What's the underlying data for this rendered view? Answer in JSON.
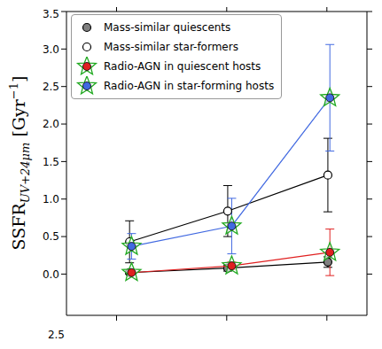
{
  "chart_data": {
    "type": "scatter",
    "y_label": {
      "text": "SSFR",
      "subscript": "UV+24μm",
      "unit": " [Gyr",
      "superscript": "−1",
      "close": "]"
    },
    "annotation": "2.5",
    "xlim": [
      0,
      3
    ],
    "xticks": [
      0.5,
      1.6,
      2.6
    ],
    "ylim": [
      -0.55,
      3.5
    ],
    "yticks": [
      {
        "value": 0,
        "label": "0.0"
      },
      {
        "value": 0.5,
        "label": "0.5"
      },
      {
        "value": 1,
        "label": "1.0"
      },
      {
        "value": 1.5,
        "label": "1.5"
      },
      {
        "value": 2,
        "label": "2.0"
      },
      {
        "value": 2.5,
        "label": "2.5"
      },
      {
        "value": 3,
        "label": "3.0"
      },
      {
        "value": 3.5,
        "label": "3.5"
      }
    ],
    "tick_labels": "y",
    "legend": "upper left",
    "series": [
      {
        "name": "Mass-similar quiescents",
        "color": "#000000",
        "marker": "filled_circle",
        "x": [
          0.63,
          1.61,
          2.61
        ],
        "values": [
          0.02,
          0.08,
          0.16
        ],
        "errors": [
          0.02,
          0.04,
          0.07
        ]
      },
      {
        "name": "Mass-similar star-formers",
        "color": "#000000",
        "marker": "open_circle",
        "x": [
          0.63,
          1.61,
          2.61
        ],
        "values": [
          0.43,
          0.84,
          1.32
        ],
        "errors": [
          0.28,
          0.34,
          0.49
        ]
      },
      {
        "name": "Radio-AGN in quiescent hosts",
        "color": "#e02020",
        "marker": "star",
        "x": [
          0.65,
          1.65,
          2.63
        ],
        "values": [
          0.02,
          0.11,
          0.29
        ],
        "errors": [
          0.02,
          0.05,
          0.31
        ]
      },
      {
        "name": "Radio-AGN in star-forming hosts",
        "color": "#4169e1",
        "marker": "star",
        "x": [
          0.65,
          1.65,
          2.63
        ],
        "values": [
          0.37,
          0.64,
          2.35
        ],
        "errors": [
          0.17,
          0.37,
          0.71
        ]
      }
    ]
  }
}
